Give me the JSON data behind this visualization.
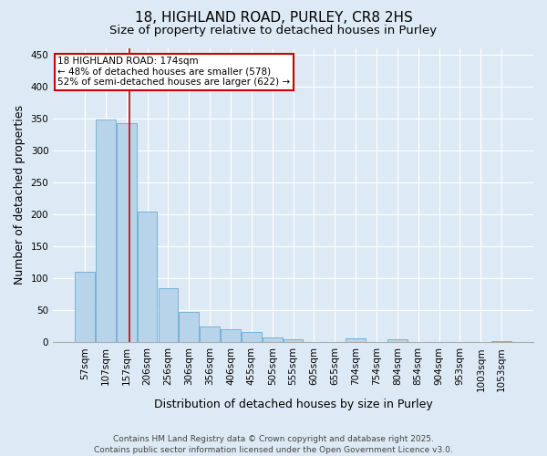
{
  "title_line1": "18, HIGHLAND ROAD, PURLEY, CR8 2HS",
  "title_line2": "Size of property relative to detached houses in Purley",
  "xlabel": "Distribution of detached houses by size in Purley",
  "ylabel": "Number of detached properties",
  "categories": [
    "57sqm",
    "107sqm",
    "157sqm",
    "206sqm",
    "256sqm",
    "306sqm",
    "356sqm",
    "406sqm",
    "455sqm",
    "505sqm",
    "555sqm",
    "605sqm",
    "655sqm",
    "704sqm",
    "754sqm",
    "804sqm",
    "854sqm",
    "904sqm",
    "953sqm",
    "1003sqm",
    "1053sqm"
  ],
  "values": [
    110,
    348,
    343,
    204,
    85,
    47,
    25,
    20,
    16,
    7,
    4,
    0,
    0,
    6,
    0,
    5,
    0,
    0,
    0,
    0,
    1
  ],
  "bar_color": "#b8d4ea",
  "bar_edge_color": "#6aaad4",
  "ylim": [
    0,
    460
  ],
  "yticks": [
    0,
    50,
    100,
    150,
    200,
    250,
    300,
    350,
    400,
    450
  ],
  "annotation_text": "18 HIGHLAND ROAD: 174sqm\n← 48% of detached houses are smaller (578)\n52% of semi-detached houses are larger (622) →",
  "vline_color": "#cc0000",
  "annotation_box_edgecolor": "#cc0000",
  "annotation_box_facecolor": "#ffffff",
  "footer_line1": "Contains HM Land Registry data © Crown copyright and database right 2025.",
  "footer_line2": "Contains public sector information licensed under the Open Government Licence v3.0.",
  "bg_color": "#ddeaf5",
  "grid_color": "#ffffff",
  "title_fontsize": 11,
  "subtitle_fontsize": 9.5,
  "axis_label_fontsize": 9,
  "tick_fontsize": 7.5,
  "annotation_fontsize": 7.5,
  "footer_fontsize": 6.5,
  "vline_x": 2.15
}
